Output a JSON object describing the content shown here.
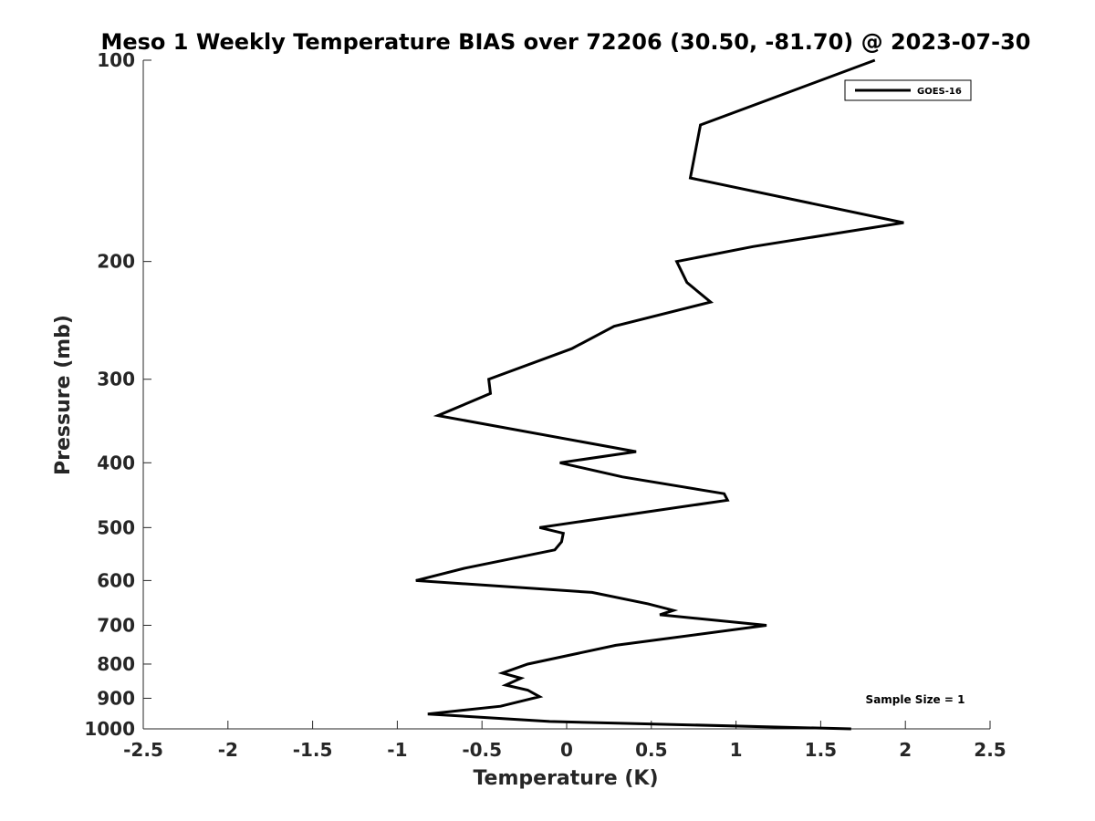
{
  "chart_data": {
    "type": "line",
    "title": "Meso 1 Weekly Temperature BIAS over 72206 (30.50, -81.70) @ 2023-07-30",
    "xlabel": "Temperature (K)",
    "ylabel": "Pressure (mb)",
    "xlim": [
      -2.5,
      2.5
    ],
    "ylim": [
      100,
      1000
    ],
    "y_scale": "log",
    "y_reversed": true,
    "grid": false,
    "legend_position": "top-right",
    "x_ticks": [
      -2.5,
      -2,
      -1.5,
      -1,
      -0.5,
      0,
      0.5,
      1,
      1.5,
      2,
      2.5
    ],
    "x_tick_labels": [
      "-2.5",
      "-2",
      "-1.5",
      "-1",
      "-0.5",
      "0",
      "0.5",
      "1",
      "1.5",
      "2",
      "2.5"
    ],
    "y_ticks": [
      100,
      200,
      300,
      400,
      500,
      600,
      700,
      800,
      900,
      1000
    ],
    "y_tick_labels": [
      "100",
      "200",
      "300",
      "400",
      "500",
      "600",
      "700",
      "800",
      "900",
      "1000"
    ],
    "annotation": "Sample Size = 1",
    "series": [
      {
        "name": "GOES-16",
        "color": "#000000",
        "points": [
          {
            "x": 1.82,
            "y": 100
          },
          {
            "x": 0.79,
            "y": 125
          },
          {
            "x": 0.73,
            "y": 150
          },
          {
            "x": 1.99,
            "y": 175
          },
          {
            "x": 1.1,
            "y": 190
          },
          {
            "x": 0.65,
            "y": 200
          },
          {
            "x": 0.71,
            "y": 215
          },
          {
            "x": 0.85,
            "y": 230
          },
          {
            "x": 0.28,
            "y": 250
          },
          {
            "x": 0.03,
            "y": 270
          },
          {
            "x": -0.46,
            "y": 300
          },
          {
            "x": -0.45,
            "y": 315
          },
          {
            "x": -0.76,
            "y": 340
          },
          {
            "x": 0.41,
            "y": 385
          },
          {
            "x": -0.04,
            "y": 400
          },
          {
            "x": 0.33,
            "y": 420
          },
          {
            "x": 0.93,
            "y": 445
          },
          {
            "x": 0.95,
            "y": 455
          },
          {
            "x": -0.16,
            "y": 500
          },
          {
            "x": -0.02,
            "y": 510
          },
          {
            "x": -0.03,
            "y": 525
          },
          {
            "x": -0.07,
            "y": 540
          },
          {
            "x": -0.6,
            "y": 575
          },
          {
            "x": -0.89,
            "y": 600
          },
          {
            "x": 0.15,
            "y": 625
          },
          {
            "x": 0.48,
            "y": 650
          },
          {
            "x": 0.63,
            "y": 665
          },
          {
            "x": 0.55,
            "y": 675
          },
          {
            "x": 1.18,
            "y": 700
          },
          {
            "x": 0.29,
            "y": 750
          },
          {
            "x": -0.23,
            "y": 800
          },
          {
            "x": -0.38,
            "y": 825
          },
          {
            "x": -0.27,
            "y": 840
          },
          {
            "x": -0.36,
            "y": 860
          },
          {
            "x": -0.23,
            "y": 875
          },
          {
            "x": -0.16,
            "y": 895
          },
          {
            "x": -0.39,
            "y": 925
          },
          {
            "x": -0.82,
            "y": 950
          },
          {
            "x": -0.1,
            "y": 975
          },
          {
            "x": 1.68,
            "y": 1000
          }
        ]
      }
    ]
  }
}
